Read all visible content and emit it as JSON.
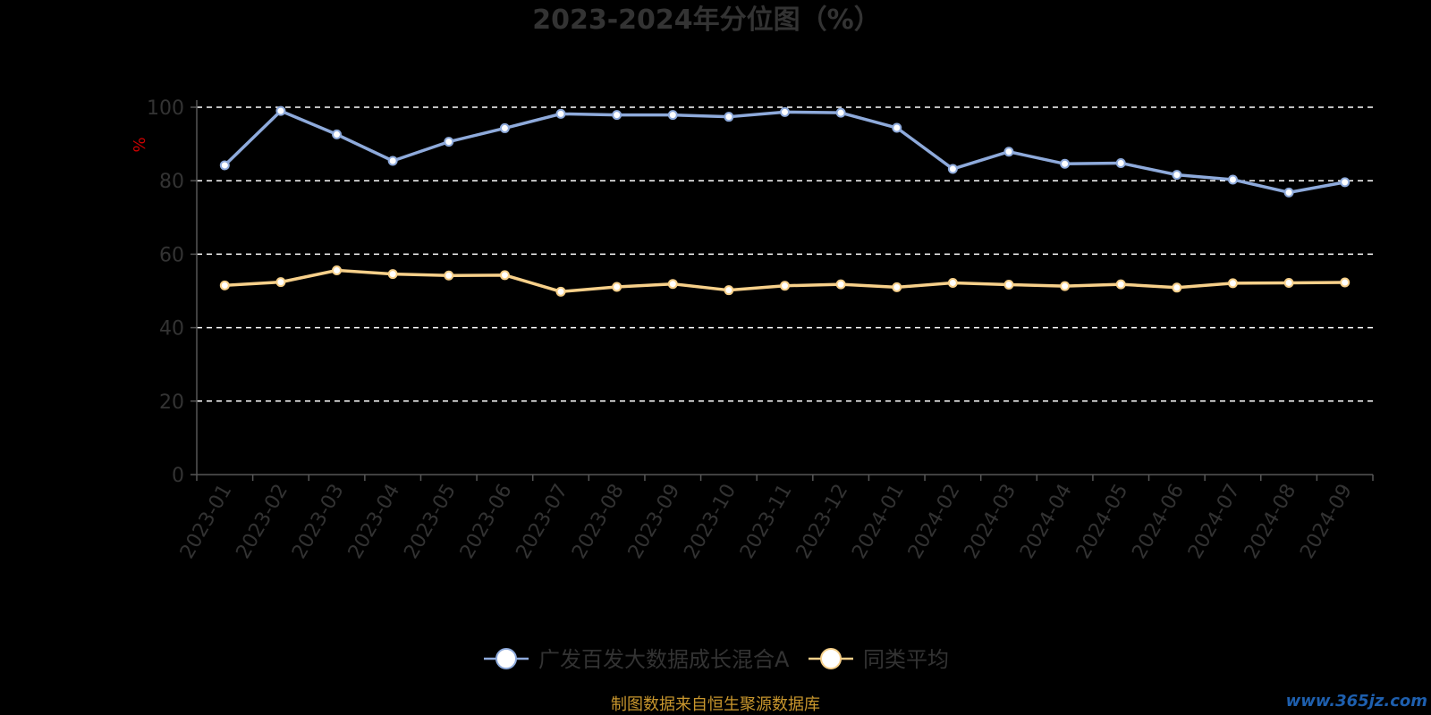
{
  "chart_data": {
    "type": "line",
    "title": "2023-2024年分位图（%）",
    "ylabel": "%",
    "ylim": [
      0,
      100
    ],
    "yticks": [
      0,
      20,
      40,
      60,
      80,
      100
    ],
    "grid": true,
    "legend_position": "bottom-center",
    "categories": [
      "2023-01",
      "2023-02",
      "2023-03",
      "2023-04",
      "2023-05",
      "2023-06",
      "2023-07",
      "2023-08",
      "2023-09",
      "2023-10",
      "2023-11",
      "2023-12",
      "2024-01",
      "2024-02",
      "2024-03",
      "2024-04",
      "2024-05",
      "2024-06",
      "2024-07",
      "2024-08",
      "2024-09"
    ],
    "series": [
      {
        "name": "广发百发大数据成长混合A",
        "color": "#8eaadb",
        "values": [
          84.2,
          99.0,
          92.6,
          85.4,
          90.6,
          94.3,
          98.2,
          97.9,
          97.9,
          97.4,
          98.7,
          98.5,
          94.4,
          83.2,
          87.9,
          84.6,
          84.8,
          81.6,
          80.3,
          76.8,
          79.6
        ]
      },
      {
        "name": "同类平均",
        "color": "#f7d08a",
        "values": [
          51.5,
          52.4,
          55.6,
          54.6,
          54.2,
          54.3,
          49.8,
          51.1,
          51.9,
          50.2,
          51.4,
          51.8,
          51.0,
          52.2,
          51.7,
          51.3,
          51.8,
          50.9,
          52.1,
          52.2,
          52.3
        ]
      }
    ]
  },
  "footer": {
    "source": "制图数据来自恒生聚源数据库",
    "watermark": "www.365jz.com"
  }
}
